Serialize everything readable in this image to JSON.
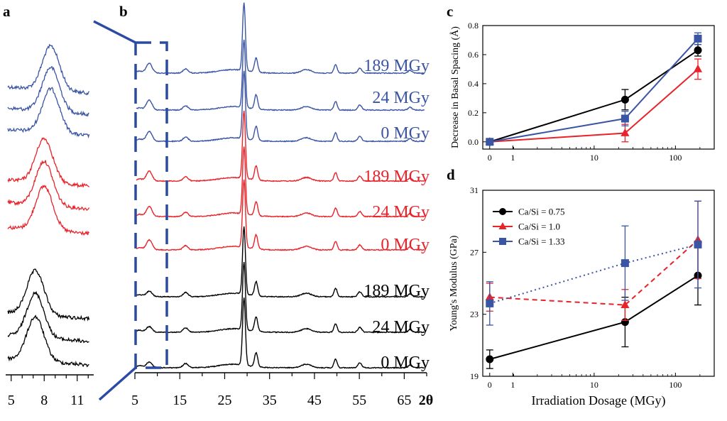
{
  "panels": {
    "a": "a",
    "b": "b",
    "c": "c",
    "d": "d"
  },
  "colors": {
    "black": "#000000",
    "red": "#e8232a",
    "blue": "#3a55a4"
  },
  "chart_data": [
    {
      "panel": "a",
      "type": "line",
      "x_ticks": [
        5,
        8,
        11
      ],
      "xlim": [
        4.5,
        12.5
      ],
      "series": [
        {
          "group": "blue",
          "peak": 8.6,
          "count": 3
        },
        {
          "group": "red",
          "peak": 8.0,
          "count": 3
        },
        {
          "group": "black",
          "peak": 7.2,
          "count": 3
        }
      ]
    },
    {
      "panel": "b",
      "type": "line",
      "xlabel": "2θ",
      "x_ticks": [
        5,
        15,
        25,
        35,
        45,
        55,
        65
      ],
      "xlim": [
        5,
        70
      ],
      "series": [
        {
          "name": "189 MGy",
          "group": "blue"
        },
        {
          "name": "24 MGy",
          "group": "blue"
        },
        {
          "name": "0 MGy",
          "group": "blue"
        },
        {
          "name": "189 MGy",
          "group": "red"
        },
        {
          "name": "24 MGy",
          "group": "red"
        },
        {
          "name": "0 MGy",
          "group": "red"
        },
        {
          "name": "189 MGy",
          "group": "black"
        },
        {
          "name": "24 MGy",
          "group": "black"
        },
        {
          "name": "0 MGy",
          "group": "black"
        }
      ]
    },
    {
      "panel": "c",
      "type": "line",
      "xscale": "symlog",
      "ylabel": "Decrease in Basal Spacing (Å)",
      "y_ticks": [
        "0.0",
        "0.2",
        "0.4",
        "0.6",
        "0.8"
      ],
      "x_ticks": [
        "0",
        "1",
        "10",
        "100"
      ],
      "ylim": [
        -0.05,
        0.8
      ],
      "x": [
        0,
        24,
        189
      ],
      "series": [
        {
          "color": "black",
          "marker": "circle",
          "values": [
            0.0,
            0.29,
            0.63
          ],
          "err": [
            0.0,
            0.07,
            0.04
          ]
        },
        {
          "color": "red",
          "marker": "triangle",
          "values": [
            0.0,
            0.06,
            0.5
          ],
          "err": [
            0.0,
            0.06,
            0.07
          ]
        },
        {
          "color": "blue",
          "marker": "square",
          "values": [
            0.0,
            0.16,
            0.71
          ],
          "err": [
            0.0,
            0.05,
            0.04
          ]
        }
      ]
    },
    {
      "panel": "d",
      "type": "line",
      "xscale": "symlog",
      "xlabel": "Irradiation Dosage (MGy)",
      "ylabel": "Young's Modulus (GPa)",
      "y_ticks": [
        "19",
        "23",
        "27",
        "31"
      ],
      "x_ticks": [
        "0",
        "1",
        "10",
        "100"
      ],
      "ylim": [
        19,
        31
      ],
      "x": [
        0,
        24,
        189
      ],
      "legend_position": "top-left",
      "series": [
        {
          "name": "Ca/Si = 0.75",
          "color": "black",
          "marker": "circle",
          "line": "solid",
          "values": [
            20.1,
            22.5,
            25.5
          ],
          "err": [
            0.6,
            1.6,
            1.9
          ]
        },
        {
          "name": "Ca/Si = 1.0",
          "color": "red",
          "marker": "triangle",
          "line": "dashed",
          "values": [
            24.1,
            23.6,
            27.8
          ],
          "err": [
            0.9,
            1.0,
            2.5
          ]
        },
        {
          "name": "Ca/Si = 1.33",
          "color": "blue",
          "marker": "square",
          "line": "dotted",
          "values": [
            23.7,
            26.3,
            27.5
          ],
          "err": [
            1.4,
            2.4,
            2.8
          ]
        }
      ]
    }
  ]
}
